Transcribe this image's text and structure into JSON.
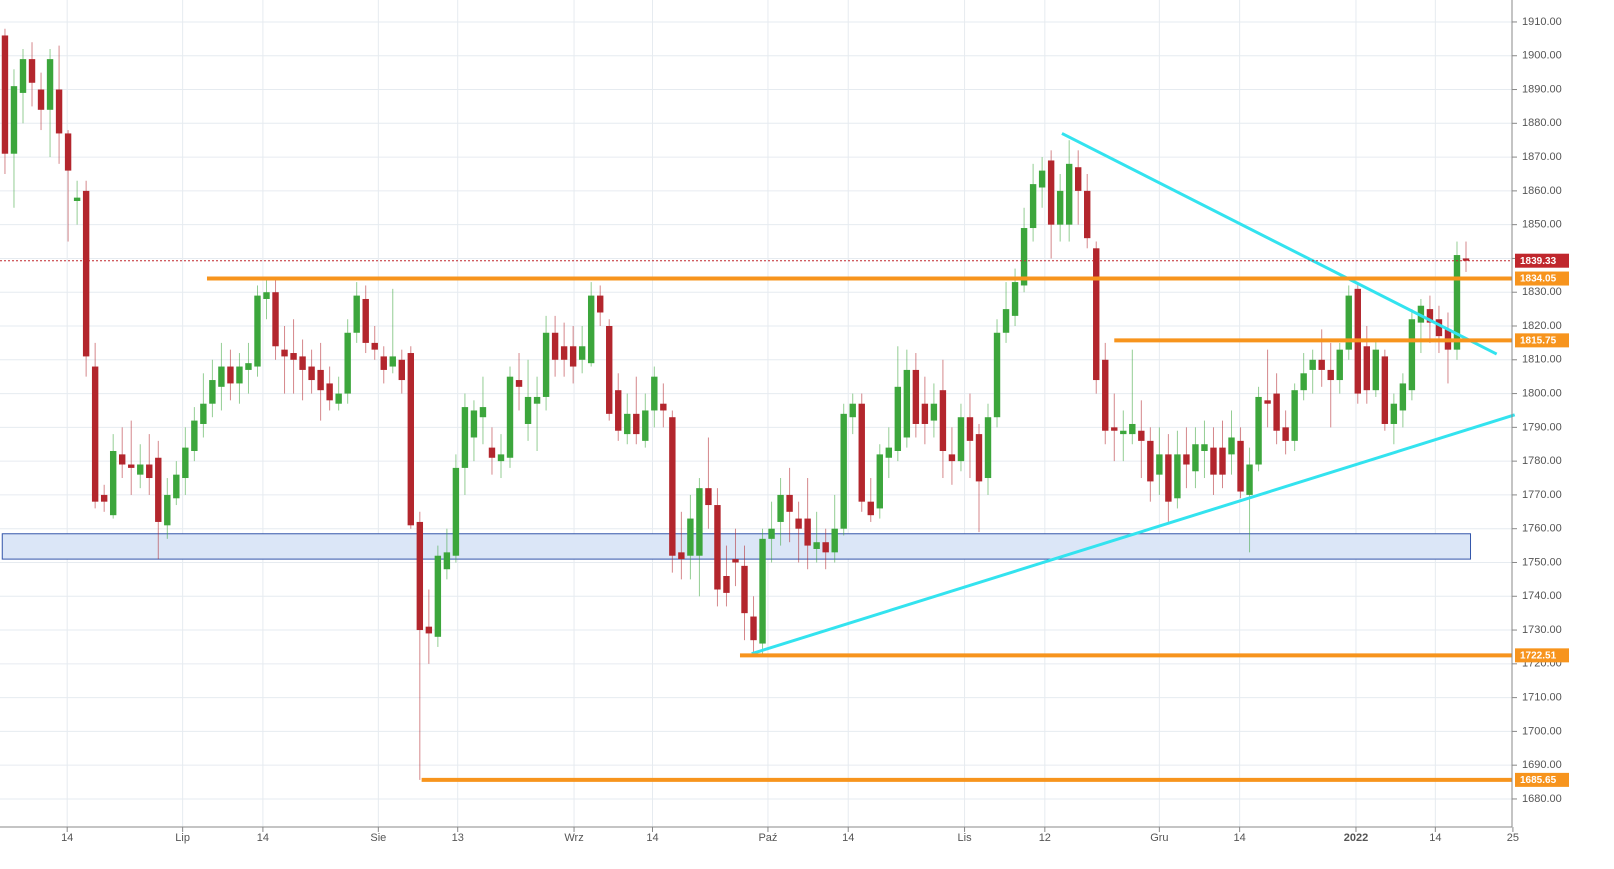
{
  "chart_data": {
    "type": "candlestick",
    "open": [
      1906,
      1871,
      1889,
      1899,
      1890,
      1884,
      1890,
      1877,
      1857,
      1860,
      1808,
      1770,
      1764,
      1782,
      1779,
      1776,
      1779,
      1781,
      1761,
      1769,
      1775,
      1783,
      1791,
      1797,
      1802,
      1808,
      1803,
      1807,
      1808,
      1828,
      1830,
      1813,
      1812,
      1811,
      1808,
      1807,
      1803,
      1797,
      1800,
      1818,
      1828,
      1815,
      1811,
      1808,
      1810,
      1812,
      1762,
      1731,
      1728,
      1748,
      1752,
      1778,
      1787,
      1793,
      1784,
      1780,
      1781,
      1804,
      1791,
      1797,
      1799,
      1818,
      1814,
      1814,
      1810,
      1809,
      1829,
      1820,
      1801,
      1788,
      1794,
      1786,
      1795,
      1797,
      1793,
      1753,
      1752,
      1752,
      1772,
      1767,
      1746,
      1751,
      1749,
      1734,
      1726,
      1757,
      1762,
      1770,
      1763,
      1763,
      1754,
      1756,
      1753,
      1760,
      1793,
      1797,
      1768,
      1766,
      1781,
      1783,
      1787,
      1807,
      1797,
      1792,
      1801,
      1782,
      1780,
      1793,
      1788,
      1775,
      1793,
      1818,
      1823,
      1832,
      1849,
      1861,
      1869,
      1850,
      1850,
      1867,
      1860,
      1843,
      1810,
      1790,
      1788,
      1788,
      1789,
      1786,
      1776,
      1782,
      1769,
      1782,
      1777,
      1783,
      1784,
      1784,
      1782,
      1786,
      1770,
      1779,
      1798,
      1800,
      1790,
      1786,
      1801,
      1807,
      1810,
      1807,
      1804,
      1813,
      1831,
      1814,
      1801,
      1811,
      1791,
      1795,
      1801,
      1821,
      1825,
      1822,
      1819,
      1813,
      1840
    ],
    "high": [
      1908,
      1896,
      1902,
      1904,
      1895,
      1902,
      1903,
      1878,
      1863,
      1863,
      1815,
      1773,
      1788,
      1790,
      1792,
      1785,
      1788,
      1786,
      1775,
      1780,
      1790,
      1796,
      1806,
      1810,
      1815,
      1813,
      1812,
      1815,
      1832,
      1834,
      1834,
      1820,
      1822,
      1816,
      1813,
      1815,
      1808,
      1805,
      1822,
      1833,
      1832,
      1820,
      1814,
      1831,
      1813,
      1814,
      1765,
      1742,
      1755,
      1760,
      1782,
      1800,
      1798,
      1805,
      1790,
      1788,
      1808,
      1812,
      1810,
      1805,
      1823,
      1823,
      1821,
      1820,
      1820,
      1833,
      1832,
      1822,
      1806,
      1800,
      1805,
      1800,
      1808,
      1803,
      1795,
      1765,
      1770,
      1775,
      1787,
      1772,
      1755,
      1760,
      1755,
      1740,
      1760,
      1768,
      1775,
      1778,
      1768,
      1775,
      1765,
      1760,
      1770,
      1797,
      1800,
      1800,
      1775,
      1785,
      1790,
      1814,
      1813,
      1812,
      1805,
      1803,
      1810,
      1790,
      1797,
      1800,
      1791,
      1797,
      1822,
      1833,
      1837,
      1855,
      1868,
      1870,
      1872,
      1865,
      1875,
      1872,
      1865,
      1845,
      1815,
      1800,
      1795,
      1813,
      1798,
      1790,
      1790,
      1788,
      1789,
      1790,
      1790,
      1792,
      1790,
      1792,
      1795,
      1790,
      1784,
      1802,
      1813,
      1806,
      1795,
      1803,
      1812,
      1813,
      1819,
      1815,
      1815,
      1832,
      1833,
      1820,
      1816,
      1813,
      1800,
      1806,
      1825,
      1828,
      1829,
      1826,
      1824,
      1845,
      1845
    ],
    "low": [
      1865,
      1855,
      1880,
      1885,
      1878,
      1870,
      1868,
      1845,
      1850,
      1805,
      1766,
      1765,
      1763,
      1775,
      1770,
      1772,
      1770,
      1751,
      1757,
      1767,
      1770,
      1780,
      1787,
      1793,
      1795,
      1798,
      1797,
      1800,
      1805,
      1822,
      1810,
      1800,
      1800,
      1798,
      1800,
      1792,
      1795,
      1795,
      1797,
      1815,
      1812,
      1810,
      1803,
      1806,
      1800,
      1760,
      1685.65,
      1720,
      1725,
      1745,
      1750,
      1770,
      1780,
      1785,
      1776,
      1775,
      1778,
      1795,
      1786,
      1783,
      1795,
      1805,
      1805,
      1803,
      1806,
      1808,
      1820,
      1792,
      1786,
      1785,
      1785,
      1784,
      1790,
      1790,
      1747,
      1745,
      1745,
      1740,
      1760,
      1737,
      1737,
      1743,
      1727,
      1722.51,
      1723,
      1750,
      1755,
      1756,
      1750,
      1748,
      1750,
      1748,
      1750,
      1758,
      1788,
      1765,
      1762,
      1763,
      1775,
      1780,
      1784,
      1787,
      1785,
      1787,
      1775,
      1773,
      1777,
      1775,
      1759,
      1770,
      1790,
      1815,
      1820,
      1830,
      1845,
      1855,
      1840,
      1845,
      1845,
      1850,
      1843,
      1800,
      1785,
      1780,
      1780,
      1785,
      1775,
      1768,
      1770,
      1762,
      1766,
      1772,
      1772,
      1775,
      1770,
      1772,
      1776,
      1769,
      1753,
      1777,
      1790,
      1785,
      1782,
      1783,
      1798,
      1800,
      1802,
      1790,
      1800,
      1810,
      1797,
      1797,
      1799,
      1789,
      1785,
      1790,
      1798,
      1812,
      1815,
      1812,
      1803,
      1810,
      1836
    ],
    "close": [
      1871,
      1891,
      1899,
      1892,
      1884,
      1899,
      1877,
      1866,
      1858,
      1811,
      1768,
      1768,
      1783,
      1779,
      1778,
      1779,
      1775,
      1762,
      1770,
      1776,
      1784,
      1792,
      1797,
      1804,
      1808,
      1803,
      1808,
      1809,
      1829,
      1830,
      1814,
      1811,
      1810,
      1807,
      1804,
      1801,
      1798,
      1800,
      1818,
      1829,
      1815,
      1813,
      1807,
      1811,
      1804,
      1761,
      1730,
      1729,
      1752,
      1753,
      1778,
      1796,
      1795,
      1796,
      1781,
      1782,
      1805,
      1802,
      1799,
      1799,
      1818,
      1810,
      1810,
      1808,
      1814,
      1829,
      1824,
      1794,
      1789,
      1794,
      1788,
      1795,
      1805,
      1795,
      1752,
      1751,
      1763,
      1772,
      1767,
      1742,
      1741,
      1750,
      1735,
      1727,
      1757,
      1760,
      1770,
      1765,
      1760,
      1755,
      1756,
      1753,
      1760,
      1794,
      1797,
      1768,
      1764,
      1782,
      1784,
      1802,
      1807,
      1791,
      1791,
      1797,
      1783,
      1780,
      1793,
      1786,
      1774,
      1793,
      1818,
      1825,
      1833,
      1849,
      1862,
      1866,
      1850,
      1860,
      1868,
      1860,
      1846,
      1804,
      1789,
      1789,
      1789,
      1791,
      1786,
      1774,
      1782,
      1768,
      1782,
      1779,
      1785,
      1785,
      1776,
      1776,
      1787,
      1771,
      1779,
      1799,
      1797,
      1789,
      1786,
      1801,
      1806,
      1810,
      1807,
      1804,
      1813,
      1829,
      1800,
      1801,
      1813,
      1791,
      1797,
      1803,
      1822,
      1826,
      1821,
      1817,
      1813,
      1841,
      1839.33
    ],
    "up_color": "#3ca63c",
    "down_color": "#b3262d",
    "xlim": [
      -0.55,
      167.1
    ],
    "ylim": [
      1671.7,
      1916.5
    ],
    "xticks": [
      {
        "value": 6.9,
        "label": "14"
      },
      {
        "value": 19.7,
        "label": "Lip"
      },
      {
        "value": 28.6,
        "label": "14"
      },
      {
        "value": 41.4,
        "label": "Sie"
      },
      {
        "value": 50.2,
        "label": "13"
      },
      {
        "value": 63.1,
        "label": "Wrz"
      },
      {
        "value": 71.8,
        "label": "14"
      },
      {
        "value": 84.6,
        "label": "Paź"
      },
      {
        "value": 93.5,
        "label": "14"
      },
      {
        "value": 106.4,
        "label": "Lis"
      },
      {
        "value": 115.3,
        "label": "12"
      },
      {
        "value": 128.0,
        "label": "Gru"
      },
      {
        "value": 136.9,
        "label": "14"
      },
      {
        "value": 149.8,
        "label": "2022"
      },
      {
        "value": 158.6,
        "label": "14"
      },
      {
        "value": 167.2,
        "label": "25"
      }
    ],
    "yticks": [
      {
        "value": 1680,
        "label": "1680.00"
      },
      {
        "value": 1690,
        "label": "1690.00"
      },
      {
        "value": 1700,
        "label": "1700.00"
      },
      {
        "value": 1710,
        "label": "1710.00"
      },
      {
        "value": 1720,
        "label": "1720.00"
      },
      {
        "value": 1730,
        "label": "1730.00"
      },
      {
        "value": 1740,
        "label": "1740.00"
      },
      {
        "value": 1750,
        "label": "1750.00"
      },
      {
        "value": 1760,
        "label": "1760.00"
      },
      {
        "value": 1770,
        "label": "1770.00"
      },
      {
        "value": 1780,
        "label": "1780.00"
      },
      {
        "value": 1790,
        "label": "1790.00"
      },
      {
        "value": 1800,
        "label": "1800.00"
      },
      {
        "value": 1810,
        "label": "1810.00"
      },
      {
        "value": 1820,
        "label": "1820.00"
      },
      {
        "value": 1830,
        "label": "1830.00"
      },
      {
        "value": 1840,
        "label": "1840.00"
      },
      {
        "value": 1850,
        "label": "1850.00"
      },
      {
        "value": 1860,
        "label": "1860.00"
      },
      {
        "value": 1870,
        "label": "1870.00"
      },
      {
        "value": 1880,
        "label": "1880.00"
      },
      {
        "value": 1890,
        "label": "1890.00"
      },
      {
        "value": 1900,
        "label": "1900.00"
      },
      {
        "value": 1910,
        "label": "1910.00"
      }
    ],
    "grid": true,
    "levels": [
      {
        "value": 1834.05,
        "start": 22.4,
        "color": "#f7941d"
      },
      {
        "value": 1815.75,
        "start": 123,
        "color": "#f7941d"
      },
      {
        "value": 1722.51,
        "start": 81.5,
        "color": "#f7941d"
      },
      {
        "value": 1685.65,
        "start": 46.2,
        "color": "#f7941d"
      }
    ],
    "last_price_color": "#c0272d",
    "trendlines": [
      {
        "x": [
          117.2,
          165.4
        ],
        "y": [
          1877,
          1811.7
        ],
        "color": "#33e3ef"
      },
      {
        "x": [
          82.8,
          167.4
        ],
        "y": [
          1723,
          1793.7
        ],
        "color": "#33e3ef"
      }
    ],
    "zone": {
      "x": [
        -0.3,
        162.5
      ],
      "y": [
        1751,
        1758.5
      ],
      "color": "#dbe6f7",
      "border": "#3355aa"
    }
  }
}
